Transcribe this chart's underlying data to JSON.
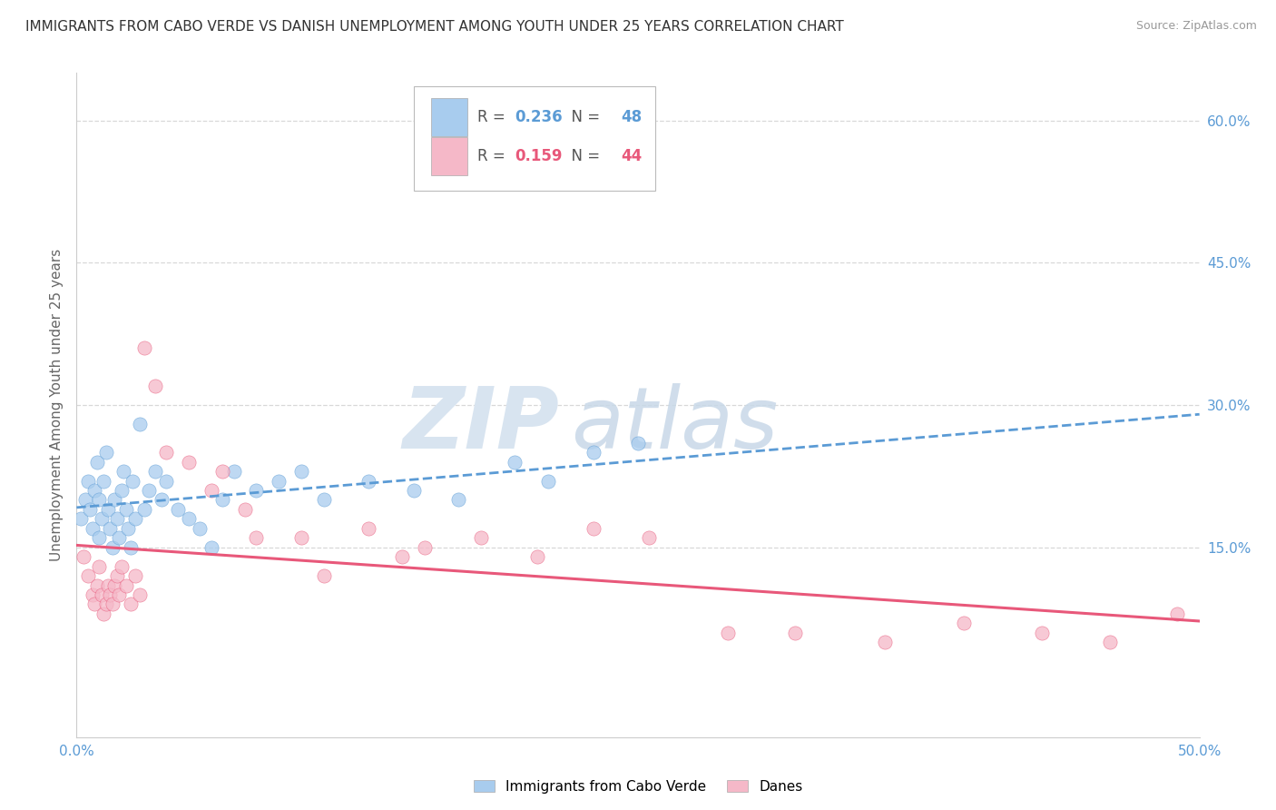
{
  "title": "IMMIGRANTS FROM CABO VERDE VS DANISH UNEMPLOYMENT AMONG YOUTH UNDER 25 YEARS CORRELATION CHART",
  "source": "Source: ZipAtlas.com",
  "ylabel": "Unemployment Among Youth under 25 years",
  "xlim": [
    0.0,
    0.5
  ],
  "ylim": [
    -0.05,
    0.65
  ],
  "xtick_positions": [
    0.0,
    0.5
  ],
  "xtick_labels": [
    "0.0%",
    "50.0%"
  ],
  "ytick_labels_right": [
    "60.0%",
    "45.0%",
    "30.0%",
    "15.0%"
  ],
  "ytick_positions_right": [
    0.6,
    0.45,
    0.3,
    0.15
  ],
  "blue_R": "0.236",
  "blue_N": "48",
  "pink_R": "0.159",
  "pink_N": "44",
  "blue_color": "#a8ccee",
  "pink_color": "#f5b8c8",
  "blue_line_color": "#5b9bd5",
  "pink_line_color": "#e8587a",
  "background_color": "#ffffff",
  "grid_color": "#d8d8d8",
  "blue_scatter_x": [
    0.002,
    0.004,
    0.005,
    0.006,
    0.007,
    0.008,
    0.009,
    0.01,
    0.01,
    0.011,
    0.012,
    0.013,
    0.014,
    0.015,
    0.016,
    0.017,
    0.018,
    0.019,
    0.02,
    0.021,
    0.022,
    0.023,
    0.024,
    0.025,
    0.026,
    0.028,
    0.03,
    0.032,
    0.035,
    0.038,
    0.04,
    0.045,
    0.05,
    0.055,
    0.06,
    0.065,
    0.07,
    0.08,
    0.09,
    0.1,
    0.11,
    0.13,
    0.15,
    0.17,
    0.195,
    0.21,
    0.23,
    0.25
  ],
  "blue_scatter_y": [
    0.18,
    0.2,
    0.22,
    0.19,
    0.17,
    0.21,
    0.24,
    0.2,
    0.16,
    0.18,
    0.22,
    0.25,
    0.19,
    0.17,
    0.15,
    0.2,
    0.18,
    0.16,
    0.21,
    0.23,
    0.19,
    0.17,
    0.15,
    0.22,
    0.18,
    0.28,
    0.19,
    0.21,
    0.23,
    0.2,
    0.22,
    0.19,
    0.18,
    0.17,
    0.15,
    0.2,
    0.23,
    0.21,
    0.22,
    0.23,
    0.2,
    0.22,
    0.21,
    0.2,
    0.24,
    0.22,
    0.25,
    0.26
  ],
  "pink_scatter_x": [
    0.003,
    0.005,
    0.007,
    0.008,
    0.009,
    0.01,
    0.011,
    0.012,
    0.013,
    0.014,
    0.015,
    0.016,
    0.017,
    0.018,
    0.019,
    0.02,
    0.022,
    0.024,
    0.026,
    0.028,
    0.03,
    0.035,
    0.04,
    0.05,
    0.065,
    0.08,
    0.1,
    0.13,
    0.155,
    0.18,
    0.205,
    0.23,
    0.255,
    0.29,
    0.32,
    0.36,
    0.395,
    0.43,
    0.46,
    0.49,
    0.06,
    0.075,
    0.11,
    0.145
  ],
  "pink_scatter_y": [
    0.14,
    0.12,
    0.1,
    0.09,
    0.11,
    0.13,
    0.1,
    0.08,
    0.09,
    0.11,
    0.1,
    0.09,
    0.11,
    0.12,
    0.1,
    0.13,
    0.11,
    0.09,
    0.12,
    0.1,
    0.36,
    0.32,
    0.25,
    0.24,
    0.23,
    0.16,
    0.16,
    0.17,
    0.15,
    0.16,
    0.14,
    0.17,
    0.16,
    0.06,
    0.06,
    0.05,
    0.07,
    0.06,
    0.05,
    0.08,
    0.21,
    0.19,
    0.12,
    0.14
  ],
  "watermark_zip": "ZIP",
  "watermark_atlas": "atlas"
}
